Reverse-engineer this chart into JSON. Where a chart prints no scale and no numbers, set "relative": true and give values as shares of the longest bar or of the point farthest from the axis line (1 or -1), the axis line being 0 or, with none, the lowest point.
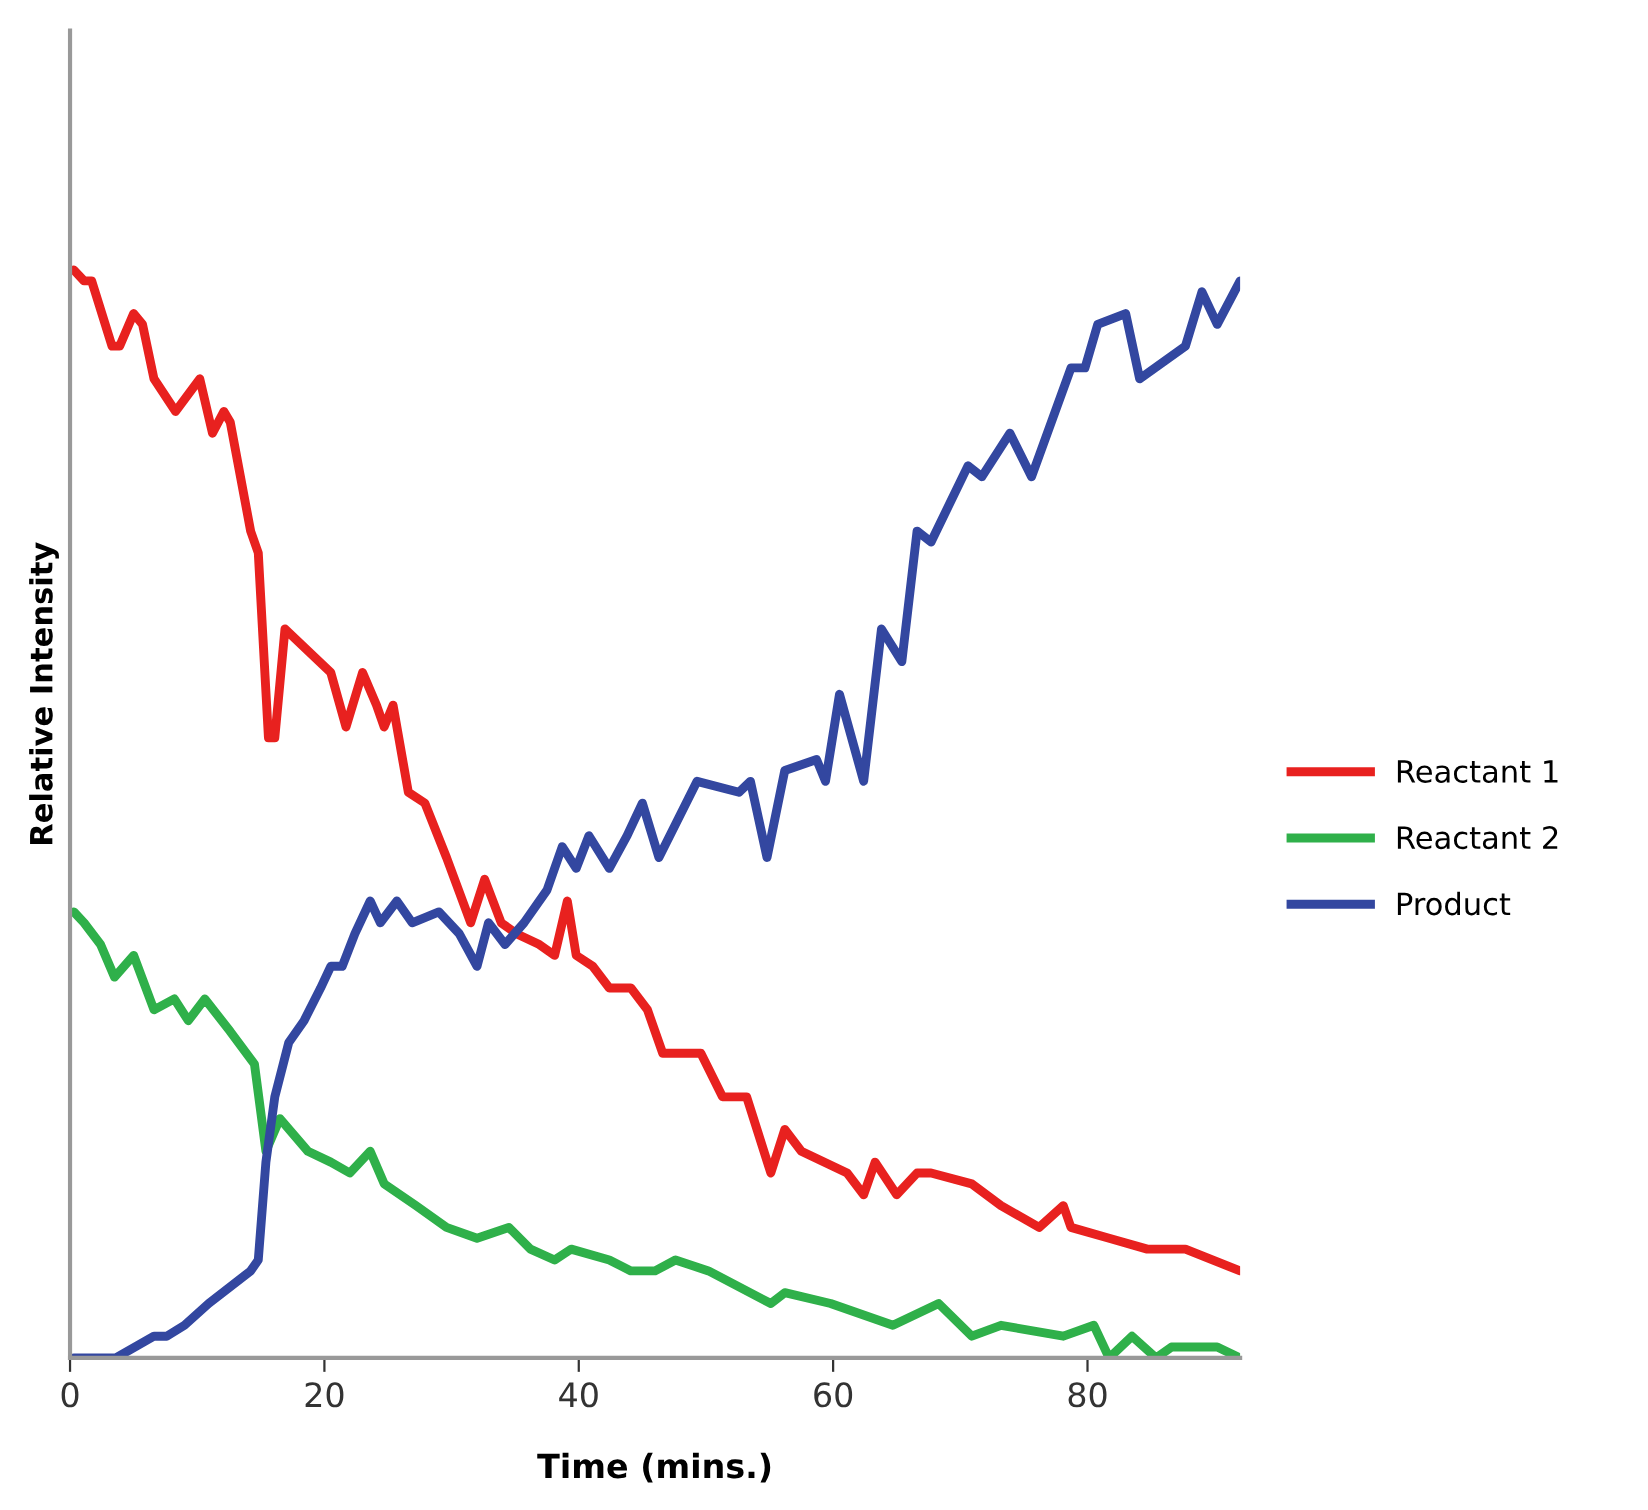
{
  "chart_data": {
    "type": "line",
    "xlabel": "Time (mins.)",
    "ylabel": "Relative Intensity",
    "relative": true,
    "xlim": [
      0,
      92
    ],
    "xticks": [
      0,
      20,
      40,
      60,
      80
    ],
    "tick_labels": "x",
    "legend": "right",
    "grid": false,
    "marker": "none",
    "line_style": "solid",
    "series": [
      {
        "name": "Reactant 1",
        "color": "#e8211f",
        "x": [
          0.3,
          1.1,
          1.7,
          3.3,
          3.9,
          5.0,
          5.7,
          6.6,
          8.3,
          10.2,
          11.2,
          12.1,
          12.6,
          14.2,
          14.8,
          15.6,
          16.1,
          16.9,
          18.7,
          20.5,
          21.7,
          23.0,
          24.1,
          24.7,
          25.4,
          26.6,
          27.9,
          29.6,
          31.5,
          32.6,
          33.9,
          35.1,
          36.9,
          38.1,
          39.1,
          39.8,
          41.1,
          42.4,
          44.1,
          45.4,
          46.6,
          49.6,
          51.3,
          53.2,
          55.1,
          56.2,
          57.5,
          61.1,
          62.4,
          63.3,
          65.0,
          66.6,
          67.7,
          70.9,
          73.2,
          76.2,
          78.1,
          78.7,
          81.7,
          84.7,
          87.7,
          92.0
        ],
        "values": [
          1.0,
          0.99,
          0.99,
          0.93,
          0.93,
          0.96,
          0.95,
          0.9,
          0.87,
          0.9,
          0.85,
          0.87,
          0.86,
          0.76,
          0.74,
          0.57,
          0.57,
          0.67,
          0.65,
          0.63,
          0.58,
          0.63,
          0.6,
          0.58,
          0.6,
          0.52,
          0.51,
          0.46,
          0.4,
          0.44,
          0.4,
          0.39,
          0.38,
          0.37,
          0.42,
          0.37,
          0.36,
          0.34,
          0.34,
          0.32,
          0.28,
          0.28,
          0.24,
          0.24,
          0.17,
          0.21,
          0.19,
          0.17,
          0.15,
          0.18,
          0.15,
          0.17,
          0.17,
          0.16,
          0.14,
          0.12,
          0.14,
          0.12,
          0.11,
          0.1,
          0.1,
          0.08
        ]
      },
      {
        "name": "Reactant 2",
        "color": "#2fb04a",
        "x": [
          0.3,
          1.1,
          2.4,
          3.5,
          5.0,
          6.6,
          8.2,
          9.3,
          10.6,
          12.6,
          14.5,
          15.4,
          16.5,
          18.7,
          20.5,
          22.0,
          23.6,
          24.7,
          27.2,
          29.6,
          32.0,
          34.5,
          36.2,
          38.1,
          39.4,
          42.4,
          44.1,
          46.0,
          47.6,
          50.2,
          55.1,
          56.2,
          59.8,
          64.7,
          68.3,
          70.9,
          73.2,
          78.1,
          80.5,
          81.7,
          83.5,
          85.4,
          86.6,
          90.2,
          92.0
        ],
        "values": [
          0.41,
          0.4,
          0.38,
          0.35,
          0.37,
          0.32,
          0.33,
          0.31,
          0.33,
          0.3,
          0.27,
          0.19,
          0.22,
          0.19,
          0.18,
          0.17,
          0.19,
          0.16,
          0.14,
          0.12,
          0.11,
          0.12,
          0.1,
          0.09,
          0.1,
          0.09,
          0.08,
          0.08,
          0.09,
          0.08,
          0.05,
          0.06,
          0.05,
          0.03,
          0.05,
          0.02,
          0.03,
          0.02,
          0.03,
          0.0,
          0.02,
          0.0,
          0.01,
          0.01,
          0.0
        ]
      },
      {
        "name": "Product",
        "color": "#3347a0",
        "x": [
          0.3,
          3.6,
          6.6,
          7.6,
          9.0,
          10.9,
          14.2,
          14.8,
          15.4,
          16.1,
          17.2,
          18.4,
          19.7,
          20.5,
          21.4,
          22.4,
          23.6,
          24.4,
          25.7,
          26.9,
          29.0,
          30.6,
          32.0,
          32.9,
          34.2,
          35.7,
          37.5,
          38.7,
          39.8,
          40.8,
          42.4,
          43.8,
          45.0,
          46.3,
          49.3,
          52.6,
          53.5,
          54.8,
          56.2,
          58.7,
          59.4,
          60.5,
          62.4,
          63.8,
          65.4,
          66.6,
          67.7,
          70.6,
          71.7,
          73.9,
          75.6,
          78.7,
          79.8,
          80.8,
          83.0,
          84.1,
          87.7,
          89.0,
          90.2,
          92.0
        ],
        "values": [
          0.0,
          0.0,
          0.02,
          0.02,
          0.03,
          0.05,
          0.08,
          0.09,
          0.18,
          0.24,
          0.29,
          0.31,
          0.34,
          0.36,
          0.36,
          0.39,
          0.42,
          0.4,
          0.42,
          0.4,
          0.41,
          0.39,
          0.36,
          0.4,
          0.38,
          0.4,
          0.43,
          0.47,
          0.45,
          0.48,
          0.45,
          0.48,
          0.51,
          0.46,
          0.53,
          0.52,
          0.53,
          0.46,
          0.54,
          0.55,
          0.53,
          0.61,
          0.53,
          0.67,
          0.64,
          0.76,
          0.75,
          0.82,
          0.81,
          0.85,
          0.81,
          0.91,
          0.91,
          0.95,
          0.96,
          0.9,
          0.93,
          0.98,
          0.95,
          0.99
        ]
      }
    ]
  }
}
